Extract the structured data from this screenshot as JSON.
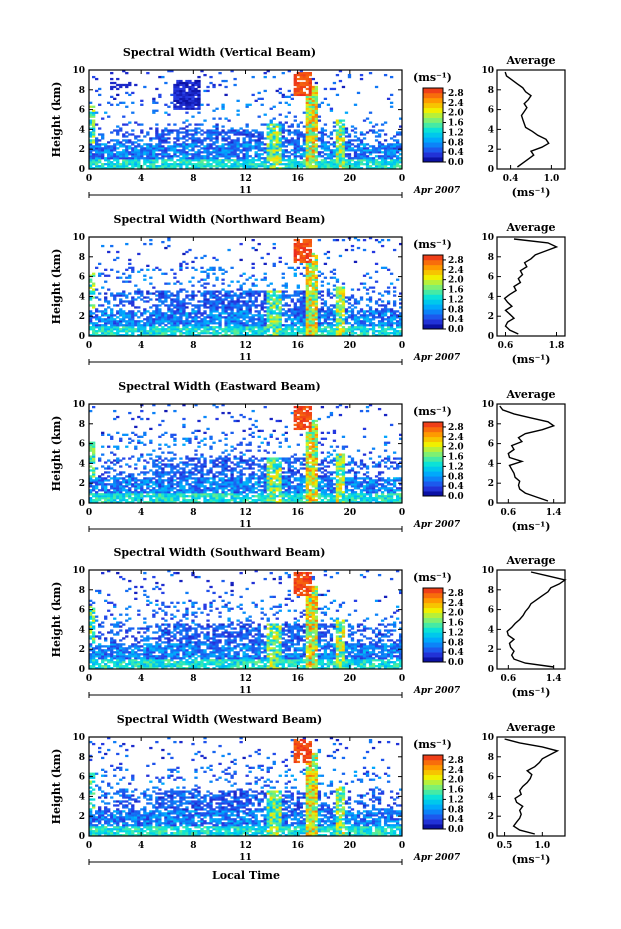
{
  "figure": {
    "date_label": "Apr 2007",
    "day_label": "11",
    "bottom_xlabel": "Local Time",
    "height_label": "Height (km)",
    "unit_label": "(ms⁻¹)",
    "average_title": "Average",
    "average_xlabel": "(ms⁻¹)"
  },
  "chart_data": [
    {
      "type": "heatmap",
      "title": "Spectral Width (Vertical Beam)",
      "xlabel": "",
      "ylabel": "Height (km)",
      "x_ticks": [
        "0",
        "4",
        "8",
        "12",
        "16",
        "20",
        "0"
      ],
      "y_ticks": [
        "0",
        "2",
        "4",
        "6",
        "8",
        "10"
      ],
      "xlim": [
        0,
        24
      ],
      "ylim": [
        0,
        10
      ],
      "colorbar": {
        "label": "(ms⁻¹)",
        "ticks": [
          "0.0",
          "0.4",
          "0.8",
          "1.2",
          "1.6",
          "2.0",
          "2.4",
          "2.8"
        ],
        "range": [
          0,
          3.0
        ]
      },
      "average_profile": {
        "title": "Average",
        "xlabel": "(ms⁻¹)",
        "x_ticks": [
          "0.4",
          "1.0"
        ],
        "xlim": [
          0.2,
          1.2
        ],
        "ylim": [
          0,
          10
        ],
        "height_km": [
          0.2,
          0.6,
          1.0,
          1.4,
          1.8,
          2.2,
          2.6,
          3.0,
          3.4,
          3.8,
          4.2,
          4.6,
          5.0,
          5.4,
          5.8,
          6.2,
          6.6,
          7.0,
          7.4,
          7.8,
          8.2,
          8.6,
          9.0,
          9.4,
          9.8
        ],
        "values": [
          0.5,
          0.58,
          0.66,
          0.74,
          0.7,
          0.86,
          0.96,
          0.92,
          0.8,
          0.72,
          0.62,
          0.6,
          0.58,
          0.56,
          0.6,
          0.64,
          0.6,
          0.66,
          0.7,
          0.62,
          0.58,
          0.5,
          0.42,
          0.34,
          0.32
        ]
      }
    },
    {
      "type": "heatmap",
      "title": "Spectral Width (Northward Beam)",
      "xlabel": "",
      "ylabel": "Height (km)",
      "x_ticks": [
        "0",
        "4",
        "8",
        "12",
        "16",
        "20",
        "0"
      ],
      "y_ticks": [
        "0",
        "2",
        "4",
        "6",
        "8",
        "10"
      ],
      "xlim": [
        0,
        24
      ],
      "ylim": [
        0,
        10
      ],
      "colorbar": {
        "label": "(ms⁻¹)",
        "ticks": [
          "0.0",
          "0.4",
          "0.8",
          "1.2",
          "1.6",
          "2.0",
          "2.4",
          "2.8"
        ],
        "range": [
          0,
          3.0
        ]
      },
      "average_profile": {
        "title": "Average",
        "xlabel": "(ms⁻¹)",
        "x_ticks": [
          "0.6",
          "1.8"
        ],
        "xlim": [
          0.4,
          2.0
        ],
        "ylim": [
          0,
          10
        ],
        "height_km": [
          0.2,
          0.6,
          1.0,
          1.4,
          1.8,
          2.2,
          2.6,
          3.0,
          3.4,
          3.8,
          4.2,
          4.6,
          5.0,
          5.4,
          5.8,
          6.2,
          6.6,
          7.0,
          7.4,
          7.8,
          8.2,
          8.6,
          9.0,
          9.4,
          9.8
        ],
        "values": [
          0.9,
          0.7,
          0.6,
          0.65,
          0.8,
          0.7,
          0.6,
          0.75,
          0.65,
          0.58,
          0.7,
          0.85,
          0.8,
          0.95,
          0.9,
          1.0,
          0.95,
          1.1,
          1.05,
          1.2,
          1.3,
          1.55,
          1.8,
          1.6,
          0.8
        ]
      }
    },
    {
      "type": "heatmap",
      "title": "Spectral Width (Eastward Beam)",
      "xlabel": "",
      "ylabel": "Height (km)",
      "x_ticks": [
        "0",
        "4",
        "8",
        "12",
        "16",
        "20",
        "0"
      ],
      "y_ticks": [
        "0",
        "2",
        "4",
        "6",
        "8",
        "10"
      ],
      "xlim": [
        0,
        24
      ],
      "ylim": [
        0,
        10
      ],
      "colorbar": {
        "label": "(ms⁻¹)",
        "ticks": [
          "0.0",
          "0.4",
          "0.8",
          "1.2",
          "1.6",
          "2.0",
          "2.4",
          "2.8"
        ],
        "range": [
          0,
          3.0
        ]
      },
      "average_profile": {
        "title": "Average",
        "xlabel": "(ms⁻¹)",
        "x_ticks": [
          "0.6",
          "1.4"
        ],
        "xlim": [
          0.4,
          1.6
        ],
        "ylim": [
          0,
          10
        ],
        "height_km": [
          0.2,
          0.6,
          1.0,
          1.4,
          1.8,
          2.2,
          2.6,
          3.0,
          3.4,
          3.8,
          4.2,
          4.6,
          5.0,
          5.4,
          5.8,
          6.2,
          6.6,
          7.0,
          7.4,
          7.8,
          8.2,
          8.6,
          9.0,
          9.4,
          9.8
        ],
        "values": [
          1.3,
          1.1,
          0.9,
          0.8,
          0.78,
          0.8,
          0.72,
          0.7,
          0.66,
          0.62,
          0.84,
          0.62,
          0.6,
          0.7,
          0.66,
          0.84,
          0.78,
          0.9,
          1.2,
          1.4,
          1.3,
          1.0,
          0.7,
          0.5,
          0.45
        ]
      }
    },
    {
      "type": "heatmap",
      "title": "Spectral Width (Southward Beam)",
      "xlabel": "",
      "ylabel": "Height (km)",
      "x_ticks": [
        "0",
        "4",
        "8",
        "12",
        "16",
        "20",
        "0"
      ],
      "y_ticks": [
        "0",
        "2",
        "4",
        "6",
        "8",
        "10"
      ],
      "xlim": [
        0,
        24
      ],
      "ylim": [
        0,
        10
      ],
      "colorbar": {
        "label": "(ms⁻¹)",
        "ticks": [
          "0.0",
          "0.4",
          "0.8",
          "1.2",
          "1.6",
          "2.0",
          "2.4",
          "2.8"
        ],
        "range": [
          0,
          3.0
        ]
      },
      "average_profile": {
        "title": "Average",
        "xlabel": "(ms⁻¹)",
        "x_ticks": [
          "0.6",
          "1.4"
        ],
        "xlim": [
          0.4,
          1.6
        ],
        "ylim": [
          0,
          10
        ],
        "height_km": [
          0.2,
          0.6,
          1.0,
          1.4,
          1.8,
          2.2,
          2.6,
          3.0,
          3.4,
          3.8,
          4.2,
          4.6,
          5.0,
          5.4,
          5.8,
          6.2,
          6.6,
          7.0,
          7.4,
          7.8,
          8.2,
          8.6,
          9.0,
          9.4,
          9.8
        ],
        "values": [
          1.4,
          0.9,
          0.7,
          0.66,
          0.7,
          0.64,
          0.62,
          0.7,
          0.6,
          0.58,
          0.66,
          0.72,
          0.8,
          0.86,
          0.9,
          0.96,
          1.0,
          1.1,
          1.2,
          1.3,
          1.35,
          1.5,
          1.6,
          1.3,
          1.0
        ]
      }
    },
    {
      "type": "heatmap",
      "title": "Spectral Width (Westward Beam)",
      "xlabel": "Local Time",
      "ylabel": "Height (km)",
      "x_ticks": [
        "0",
        "4",
        "8",
        "12",
        "16",
        "20",
        "0"
      ],
      "y_ticks": [
        "0",
        "2",
        "4",
        "6",
        "8",
        "10"
      ],
      "xlim": [
        0,
        24
      ],
      "ylim": [
        0,
        10
      ],
      "colorbar": {
        "label": "(ms⁻¹)",
        "ticks": [
          "0.0",
          "0.4",
          "0.8",
          "1.2",
          "1.6",
          "2.0",
          "2.4",
          "2.8"
        ],
        "range": [
          0,
          3.0
        ]
      },
      "average_profile": {
        "title": "Average",
        "xlabel": "(ms⁻¹)",
        "x_ticks": [
          "0.5",
          "1.0"
        ],
        "xlim": [
          0.4,
          1.3
        ],
        "ylim": [
          0,
          10
        ],
        "height_km": [
          0.2,
          0.6,
          1.0,
          1.4,
          1.8,
          2.2,
          2.6,
          3.0,
          3.4,
          3.8,
          4.2,
          4.6,
          5.0,
          5.4,
          5.8,
          6.2,
          6.6,
          7.0,
          7.4,
          7.8,
          8.2,
          8.6,
          9.0,
          9.4,
          9.8
        ],
        "values": [
          0.9,
          0.7,
          0.62,
          0.66,
          0.7,
          0.72,
          0.7,
          0.74,
          0.66,
          0.64,
          0.72,
          0.7,
          0.74,
          0.8,
          0.84,
          0.86,
          0.8,
          0.9,
          0.96,
          1.0,
          1.1,
          1.2,
          1.0,
          0.7,
          0.5
        ]
      }
    }
  ]
}
